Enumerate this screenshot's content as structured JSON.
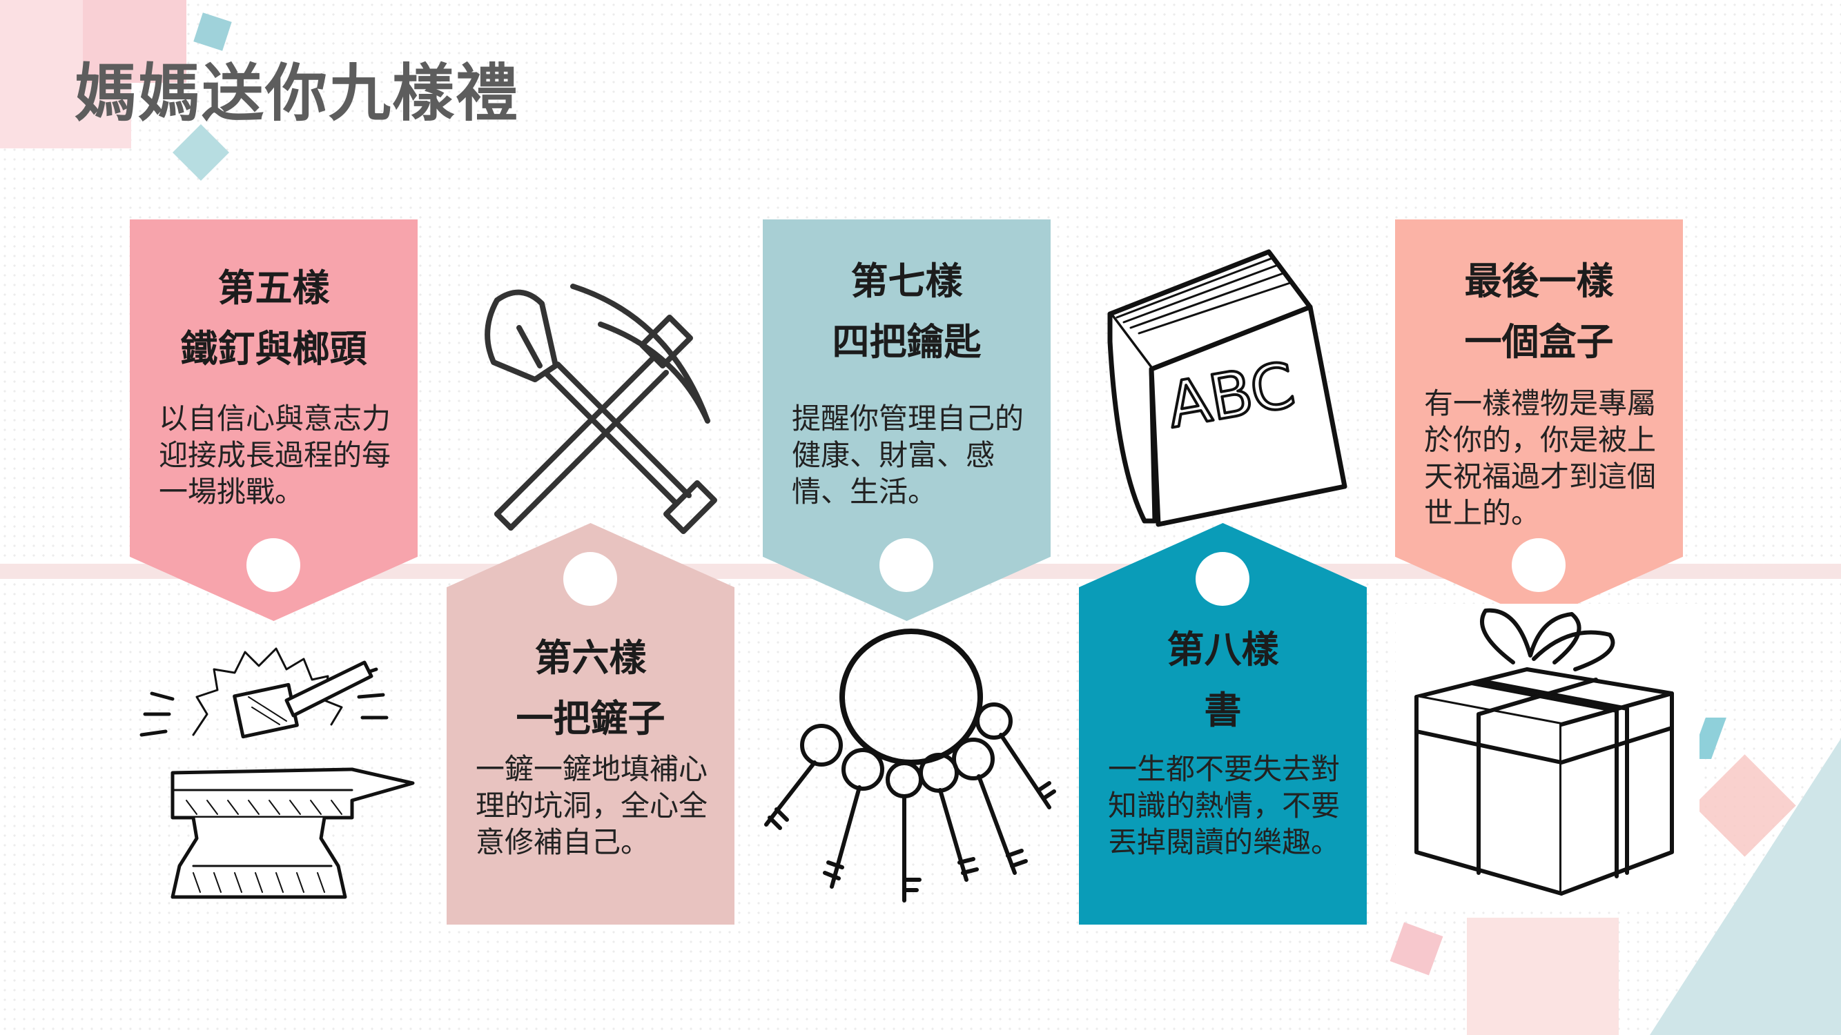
{
  "slide": {
    "title": "媽媽送你九樣禮"
  },
  "colors": {
    "pink": "#f7a4ac",
    "dusty_pink": "#e8c3c0",
    "light_teal": "#a8cfd4",
    "teal": "#0a9cb8",
    "salmon": "#fbb3a6",
    "title_gray": "#5d5d5d"
  },
  "gifts": [
    {
      "heading_1": "第五樣",
      "heading_2": "鐵釘與榔頭",
      "desc": "以自信心與意志力迎接成長過程的每一場挑戰。",
      "icon": "anvil-hammer-icon"
    },
    {
      "heading_1": "第六樣",
      "heading_2": "一把鏟子",
      "desc": "一鏟一鏟地填補心理的坑洞，全心全意修補自己。",
      "icon": "shovel-pickaxe-icon"
    },
    {
      "heading_1": "第七樣",
      "heading_2": "四把鑰匙",
      "desc": "提醒你管理自己的健康、財富、感情、生活。",
      "icon": "key-ring-icon"
    },
    {
      "heading_1": "第八樣",
      "heading_2": "書",
      "desc": "一生都不要失去對知識的熱情，不要丟掉閱讀的樂趣。",
      "icon": "abc-book-icon",
      "book_text": "ABC"
    },
    {
      "heading_1": "最後一樣",
      "heading_2": "一個盒子",
      "desc": "有一樣禮物是專屬於你的，你是被上天祝福過才到這個世上的。",
      "icon": "gift-box-icon"
    }
  ]
}
